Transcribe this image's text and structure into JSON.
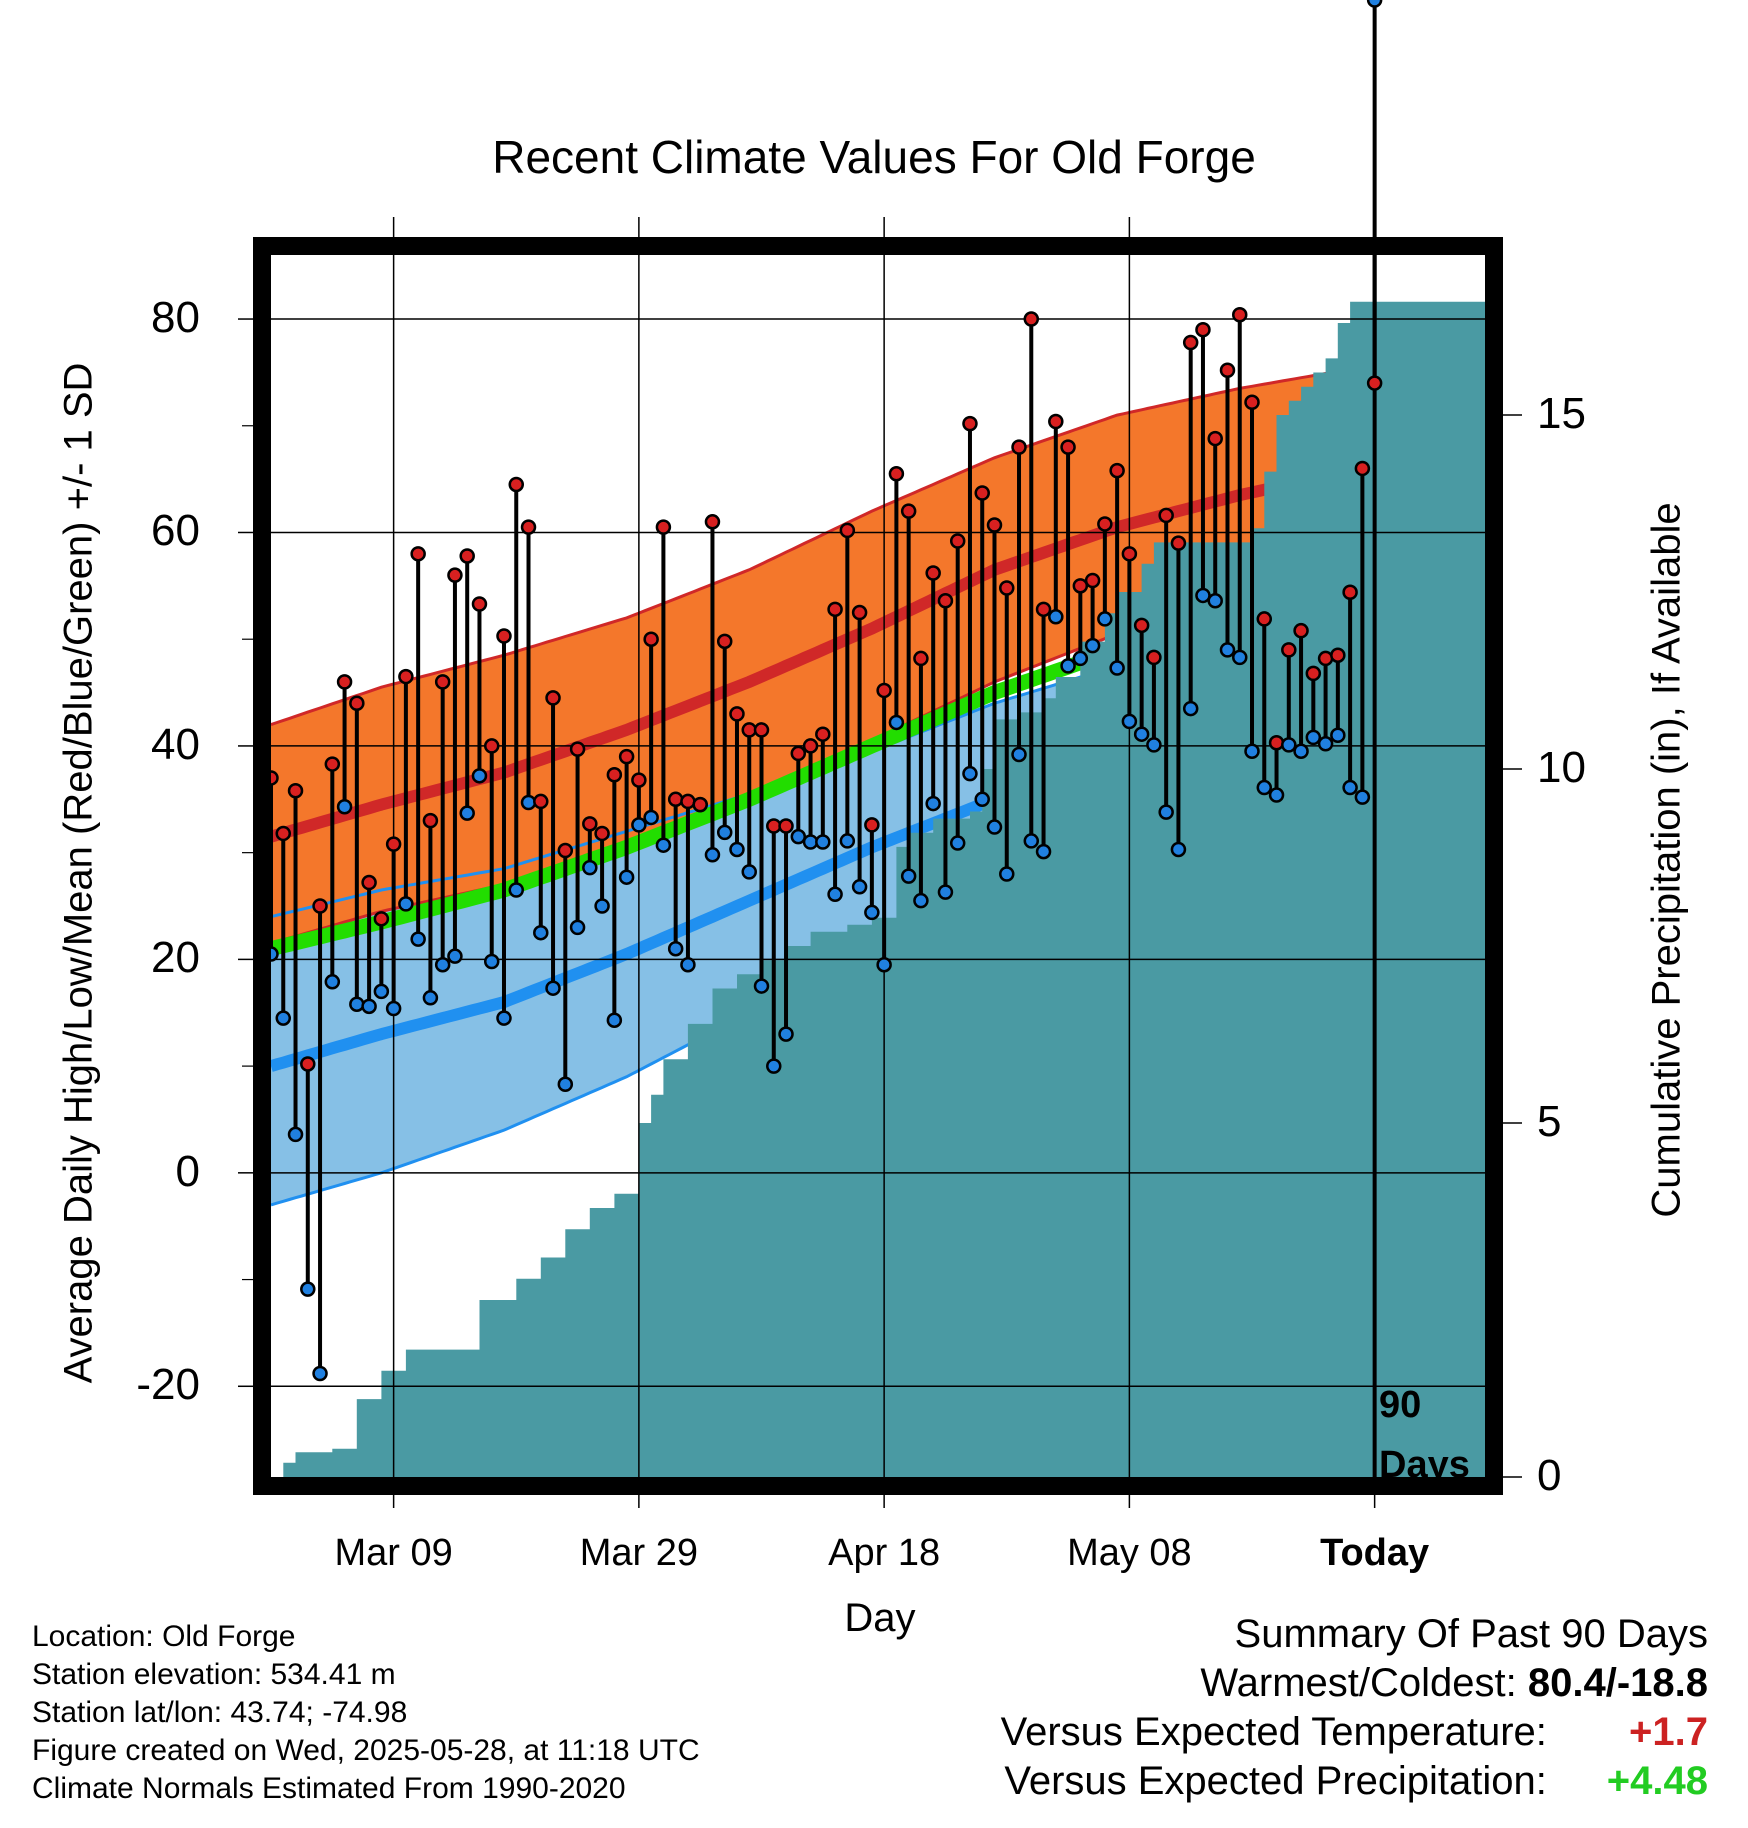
{
  "chart_data": {
    "type": "line",
    "title": "Recent Climate Values For Old Forge",
    "xlabel": "Day",
    "ylabel_left": "Average Daily High/Low/Mean (Red/Blue/Green) +/- 1 SD",
    "ylabel_right": "Cumulative Precipitation (in), If Available",
    "x_ticks": [
      {
        "day": 11,
        "label": "Mar 09"
      },
      {
        "day": 31,
        "label": "Mar 29"
      },
      {
        "day": 51,
        "label": "Apr 18"
      },
      {
        "day": 71,
        "label": "May 08"
      },
      {
        "day": 91,
        "label": "Today"
      }
    ],
    "xlim": [
      1,
      100
    ],
    "ylim_temp": [
      -28.5,
      86
    ],
    "y_ticks_temp": [
      -20,
      0,
      20,
      40,
      60,
      80
    ],
    "ylim_precip": [
      0,
      17.26
    ],
    "y_ticks_precip": [
      0,
      5,
      10,
      15
    ],
    "today_day": 91,
    "today_annotation": [
      "90",
      "Days"
    ],
    "normals": {
      "days": [
        1,
        10,
        20,
        30,
        40,
        50,
        60,
        70,
        80,
        90,
        100
      ],
      "high_mean": [
        31.5,
        34.5,
        37.5,
        41.5,
        46,
        51,
        56.5,
        60.5,
        63.5,
        66,
        69
      ],
      "high_upper": [
        42,
        45.5,
        48.5,
        52,
        56.5,
        62,
        67,
        71,
        73.5,
        75.5,
        77.5
      ],
      "high_lower": [
        21.5,
        24.5,
        27,
        30.5,
        35,
        40.5,
        46,
        50.5,
        54,
        57,
        60.5
      ],
      "low_mean": [
        10,
        13,
        16,
        20.5,
        25.5,
        30.5,
        35,
        38.5,
        41.5,
        44.5,
        48
      ],
      "low_upper": [
        24,
        26.5,
        28.5,
        32,
        35.5,
        39.5,
        44,
        47.5,
        50.5,
        53,
        56
      ],
      "low_lower": [
        -3,
        0,
        4,
        9,
        15,
        22,
        27.5,
        31,
        34,
        37,
        41
      ],
      "avg_mean": [
        21,
        23.5,
        26.5,
        30.5,
        35,
        40,
        45,
        49,
        52.5,
        55.5,
        58.5
      ]
    },
    "series": [
      {
        "name": "High",
        "values": [
          37,
          31.8,
          35.8,
          10.2,
          25,
          38.3,
          46,
          44,
          27.2,
          23.8,
          30.8,
          46.5,
          58,
          33,
          46,
          56,
          57.8,
          53.3,
          40,
          50.3,
          64.5,
          60.5,
          34.8,
          44.5,
          30.2,
          39.7,
          32.7,
          31.8,
          37.3,
          39,
          36.8,
          50,
          60.5,
          35,
          34.8,
          34.5,
          61,
          49.8,
          43,
          41.5,
          41.5,
          32.5,
          32.5,
          39.3,
          40,
          41.1,
          52.8,
          60.2,
          52.5,
          32.6,
          45.2,
          65.5,
          62,
          48.2,
          56.2,
          53.6,
          59.2,
          70.2,
          63.7,
          60.7,
          54.8,
          68,
          80,
          52.8,
          70.4,
          68,
          55,
          55.5,
          60.8,
          65.8,
          58,
          51.3,
          48.3,
          61.6,
          59,
          77.8,
          79,
          68.8,
          75.2,
          80.4,
          72.2,
          51.9,
          40.3,
          49,
          50.8,
          46.8,
          48.2,
          48.5,
          54.4,
          66,
          74
        ]
      },
      {
        "name": "Low",
        "values": [
          20.5,
          14.5,
          3.6,
          -10.9,
          -18.8,
          17.9,
          34.3,
          15.8,
          15.6,
          17,
          15.4,
          25.2,
          21.9,
          16.4,
          19.5,
          20.3,
          33.7,
          37.2,
          19.8,
          14.5,
          26.5,
          34.7,
          22.5,
          17.3,
          8.3,
          23,
          28.6,
          25,
          14.3,
          27.7,
          32.6,
          33.3,
          30.7,
          21,
          19.5,
          34.5,
          29.8,
          31.9,
          30.3,
          28.2,
          17.5,
          10,
          13,
          31.5,
          31,
          31,
          26.1,
          31.1,
          26.8,
          24.4,
          19.5,
          42.2,
          27.8,
          25.5,
          34.6,
          26.3,
          30.9,
          37.4,
          35,
          32.4,
          28,
          39.2,
          31.1,
          30.1,
          52.1,
          47.5,
          48.2,
          49.4,
          51.9,
          47.3,
          42.3,
          41.1,
          40.1,
          33.8,
          30.3,
          43.5,
          54.1,
          53.6,
          49,
          48.3,
          39.5,
          36.1,
          35.4,
          40.1,
          39.5,
          40.8,
          40.2,
          41,
          36.1,
          35.2
        ]
      }
    ],
    "cumulative_precipitation": {
      "days": [
        1,
        2,
        3,
        6,
        8,
        10,
        12,
        17,
        18,
        21,
        23,
        25,
        27,
        29,
        31,
        32,
        33,
        35,
        37,
        39,
        41,
        43,
        45,
        48,
        50,
        52,
        53,
        55,
        58,
        59,
        60,
        62,
        64,
        65,
        67,
        69,
        70,
        72,
        73,
        81,
        82,
        83,
        84,
        85,
        86,
        87,
        88,
        89,
        99,
        100
      ],
      "values": [
        0,
        0.2,
        0.35,
        0.4,
        1.1,
        1.5,
        1.8,
        1.8,
        2.5,
        2.8,
        3.1,
        3.5,
        3.8,
        4,
        5,
        5.4,
        5.9,
        6.4,
        6.9,
        7.1,
        7.3,
        7.5,
        7.7,
        7.8,
        7.9,
        8.9,
        9.1,
        9.3,
        9.4,
        10,
        10.7,
        10.8,
        11,
        11.3,
        11.8,
        12.2,
        12.5,
        12.9,
        13.2,
        13.4,
        14.2,
        15,
        15.2,
        15.4,
        15.6,
        15.8,
        16.3,
        16.6,
        16.6,
        16.6
      ]
    }
  },
  "info": {
    "location": "Location: Old Forge",
    "elevation": "Station elevation: 534.41 m",
    "latlon": "Station lat/lon: 43.74; -74.98",
    "created": "Figure created on Wed, 2025-05-28, at 11:18 UTC",
    "normals_period": "Climate Normals Estimated From 1990-2020"
  },
  "summary": {
    "title": "Summary Of Past 90 Days",
    "warmest_coldest_label": "Warmest/Coldest:",
    "warmest_coldest_value": "80.4/-18.8",
    "temp_label": "Versus Expected Temperature:",
    "temp_value": "+1.7",
    "temp_color": "#cc2222",
    "precip_label": "Versus Expected Precipitation:",
    "precip_value": "+4.48",
    "precip_color": "#22cc22"
  },
  "colors": {
    "high_band": "#f4772b",
    "high_line": "#d02828",
    "low_band": "#86c0e6",
    "low_line": "#2090f0",
    "mean_line": "#22dd00",
    "precip_fill": "#4a9aa3",
    "high_marker": "#d82020",
    "low_marker": "#2080e0"
  }
}
